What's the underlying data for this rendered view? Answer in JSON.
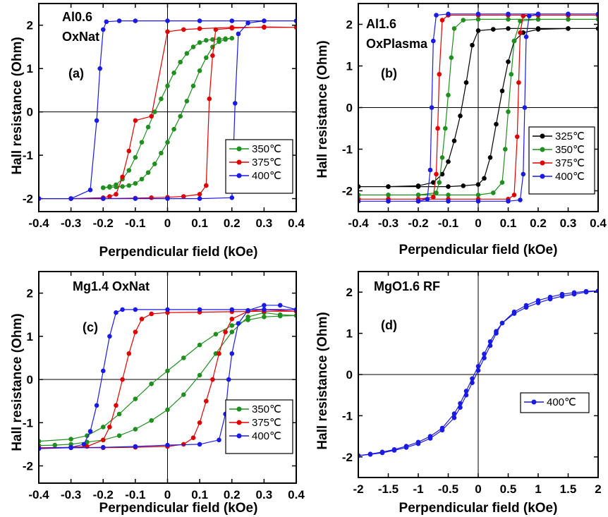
{
  "colors": {
    "green": "#1f8f1f",
    "red": "#e00000",
    "blue": "#1a1ae6",
    "black": "#000000"
  },
  "chart_data": [
    {
      "id": "a",
      "type": "line",
      "title": [
        "Al0.6",
        "OxNat"
      ],
      "label": "(a)",
      "xlabel": "Perpendicular field (kOe)",
      "ylabel": "Hall resistance (Ohm)",
      "xlim": [
        -0.4,
        0.4
      ],
      "ylim": [
        -2.3,
        2.5
      ],
      "xticks": [
        -0.4,
        -0.3,
        -0.2,
        -0.1,
        0,
        0.1,
        0.2,
        0.3,
        0.4
      ],
      "xtick_labels": [
        "-0.4",
        "-0.3",
        "-0.2",
        "-0.1",
        "0",
        "0.1",
        "0.2",
        "0.3",
        "0.4"
      ],
      "yticks": [
        -2,
        -1,
        0,
        1,
        2
      ],
      "ytick_labels": [
        "-2",
        "-1",
        "0",
        "1",
        "2"
      ],
      "legend_position": "bottom-right",
      "series": [
        {
          "name": "350℃",
          "color_key": "green",
          "x": [
            -0.2,
            -0.18,
            -0.16,
            -0.14,
            -0.12,
            -0.1,
            -0.08,
            -0.06,
            -0.04,
            -0.02,
            0,
            0.02,
            0.04,
            0.06,
            0.08,
            0.1,
            0.12,
            0.14,
            0.16,
            0.18,
            0.2,
            0.18,
            0.16,
            0.14,
            0.12,
            0.1,
            0.08,
            0.06,
            0.04,
            0.02,
            0,
            -0.02,
            -0.04,
            -0.06,
            -0.08,
            -0.1,
            -0.12,
            -0.14,
            -0.16,
            -0.18,
            -0.2
          ],
          "y": [
            -1.75,
            -1.74,
            -1.73,
            -1.72,
            -1.7,
            -1.65,
            -1.55,
            -1.4,
            -1.2,
            -0.95,
            -0.7,
            -0.4,
            -0.1,
            0.25,
            0.6,
            0.95,
            1.25,
            1.5,
            1.62,
            1.67,
            1.7,
            1.69,
            1.68,
            1.67,
            1.65,
            1.6,
            1.5,
            1.35,
            1.15,
            0.9,
            0.6,
            0.3,
            0.0,
            -0.35,
            -0.7,
            -1.05,
            -1.35,
            -1.55,
            -1.68,
            -1.72,
            -1.75
          ]
        },
        {
          "name": "375℃",
          "color_key": "red",
          "x": [
            -0.4,
            -0.3,
            -0.2,
            -0.18,
            -0.16,
            -0.14,
            -0.12,
            -0.1,
            -0.05,
            0,
            0.05,
            0.1,
            0.2,
            0.3,
            0.4,
            0.3,
            0.2,
            0.15,
            0.14,
            0.13,
            0.12,
            0.1,
            0.05,
            0,
            -0.05,
            -0.1,
            -0.2,
            -0.3,
            -0.4
          ],
          "y": [
            -2.0,
            -2.0,
            -1.98,
            -1.95,
            -1.9,
            -1.5,
            -0.9,
            -0.2,
            -0.1,
            1.85,
            1.9,
            1.92,
            1.95,
            1.95,
            1.95,
            1.96,
            1.93,
            1.9,
            1.3,
            0.3,
            -1.7,
            -1.9,
            -1.95,
            -1.97,
            -1.98,
            -1.99,
            -2.0,
            -2.0,
            -2.0
          ]
        },
        {
          "name": "400℃",
          "color_key": "blue",
          "x": [
            -0.4,
            -0.3,
            -0.24,
            -0.22,
            -0.21,
            -0.2,
            -0.19,
            -0.15,
            -0.1,
            0,
            0.1,
            0.2,
            0.3,
            0.4,
            0.3,
            0.25,
            0.22,
            0.21,
            0.2,
            0.1,
            0,
            -0.1,
            -0.2,
            -0.3,
            -0.4
          ],
          "y": [
            -2.0,
            -2.0,
            -1.8,
            -0.2,
            1.0,
            1.9,
            2.08,
            2.1,
            2.1,
            2.1,
            2.1,
            2.1,
            2.1,
            2.1,
            2.1,
            2.05,
            1.8,
            0.2,
            -1.98,
            -2.0,
            -2.0,
            -2.0,
            -2.0,
            -2.0,
            -2.0
          ]
        }
      ]
    },
    {
      "id": "b",
      "type": "line",
      "title": [
        "Al1.6",
        "OxPlasma"
      ],
      "label": "(b)",
      "xlabel": "Perpendicular field (kOe)",
      "ylabel": "Hall resistance (Ohm)",
      "xlim": [
        -0.4,
        0.4
      ],
      "ylim": [
        -2.5,
        2.5
      ],
      "xticks": [
        -0.4,
        -0.3,
        -0.2,
        -0.1,
        0,
        0.1,
        0.2,
        0.3,
        0.4
      ],
      "xtick_labels": [
        "-0.4",
        "-0.3",
        "-0.2",
        "-0.1",
        "0",
        "0.1",
        "0.2",
        "0.3",
        "0.4"
      ],
      "yticks": [
        -2,
        -1,
        0,
        1,
        2
      ],
      "ytick_labels": [
        "-2",
        "-1",
        "0",
        "1",
        "2"
      ],
      "legend_position": "bottom-right",
      "series": [
        {
          "name": "325℃",
          "color_key": "black",
          "x": [
            -0.4,
            -0.3,
            -0.2,
            -0.15,
            -0.12,
            -0.1,
            -0.08,
            -0.06,
            -0.04,
            -0.02,
            0,
            0.05,
            0.1,
            0.2,
            0.3,
            0.4,
            0.3,
            0.2,
            0.15,
            0.12,
            0.1,
            0.08,
            0.06,
            0.04,
            0.02,
            0,
            -0.05,
            -0.1,
            -0.2,
            -0.3,
            -0.4
          ],
          "y": [
            -1.9,
            -1.9,
            -1.88,
            -1.8,
            -1.6,
            -1.3,
            -0.8,
            -0.2,
            0.6,
            1.5,
            1.85,
            1.88,
            1.9,
            1.9,
            1.9,
            1.9,
            1.9,
            1.88,
            1.8,
            1.6,
            1.1,
            0.4,
            -0.4,
            -1.2,
            -1.7,
            -1.85,
            -1.88,
            -1.9,
            -1.9,
            -1.9,
            -1.9
          ]
        },
        {
          "name": "350℃",
          "color_key": "green",
          "x": [
            -0.4,
            -0.3,
            -0.2,
            -0.14,
            -0.13,
            -0.12,
            -0.11,
            -0.1,
            -0.09,
            -0.08,
            -0.05,
            0,
            0.1,
            0.2,
            0.3,
            0.4,
            0.3,
            0.2,
            0.14,
            0.12,
            0.11,
            0.1,
            0.09,
            0.08,
            0.05,
            0,
            -0.1,
            -0.2,
            -0.3,
            -0.4
          ],
          "y": [
            -2.1,
            -2.1,
            -2.1,
            -2.05,
            -1.8,
            -1.2,
            -0.5,
            0.3,
            1.2,
            1.9,
            2.1,
            2.12,
            2.12,
            2.12,
            2.12,
            2.12,
            2.12,
            2.12,
            2.08,
            1.6,
            0.8,
            -0.1,
            -1.0,
            -1.8,
            -2.05,
            -2.1,
            -2.1,
            -2.1,
            -2.1,
            -2.1
          ]
        },
        {
          "name": "375℃",
          "color_key": "red",
          "x": [
            -0.4,
            -0.3,
            -0.2,
            -0.15,
            -0.14,
            -0.135,
            -0.13,
            -0.12,
            -0.1,
            0,
            0.1,
            0.2,
            0.3,
            0.4,
            0.3,
            0.2,
            0.15,
            0.14,
            0.135,
            0.13,
            0.12,
            0.1,
            0,
            -0.1,
            -0.2,
            -0.3,
            -0.4
          ],
          "y": [
            -2.2,
            -2.2,
            -2.2,
            -2.15,
            -1.6,
            -0.5,
            0.8,
            2.1,
            2.22,
            2.22,
            2.22,
            2.22,
            2.22,
            2.22,
            2.22,
            2.22,
            2.2,
            1.8,
            0.6,
            -0.7,
            -2.1,
            -2.2,
            -2.2,
            -2.2,
            -2.2,
            -2.2,
            -2.2
          ]
        },
        {
          "name": "400℃",
          "color_key": "blue",
          "x": [
            -0.4,
            -0.3,
            -0.2,
            -0.17,
            -0.16,
            -0.155,
            -0.15,
            -0.14,
            -0.1,
            0,
            0.1,
            0.2,
            0.3,
            0.4,
            0.3,
            0.2,
            0.17,
            0.16,
            0.155,
            0.15,
            0.14,
            0.1,
            0,
            -0.1,
            -0.2,
            -0.3,
            -0.4
          ],
          "y": [
            -2.25,
            -2.25,
            -2.25,
            -2.2,
            -1.5,
            0.0,
            1.6,
            2.22,
            2.25,
            2.25,
            2.25,
            2.25,
            2.25,
            2.25,
            2.25,
            2.25,
            2.2,
            1.7,
            0.0,
            -1.6,
            -2.22,
            -2.25,
            -2.25,
            -2.25,
            -2.25,
            -2.25,
            -2.25
          ]
        }
      ]
    },
    {
      "id": "c",
      "type": "line",
      "title": [
        "Mg1.4 OxNat"
      ],
      "label": "(c)",
      "xlabel": "Perpendicular field (kOe)",
      "ylabel": "Hall resistance (Ohm)",
      "xlim": [
        -0.4,
        0.4
      ],
      "ylim": [
        -2.4,
        2.5
      ],
      "xticks": [
        -0.4,
        -0.3,
        -0.2,
        -0.1,
        0,
        0.1,
        0.2,
        0.3,
        0.4
      ],
      "xtick_labels": [
        "-0.4",
        "-0.3",
        "-0.2",
        "-0.1",
        "0",
        "0.1",
        "0.2",
        "0.3",
        "0.4"
      ],
      "yticks": [
        -2,
        -1,
        0,
        1,
        2
      ],
      "ytick_labels": [
        "-2",
        "-1",
        "0",
        "1",
        "2"
      ],
      "legend_position": "bottom-right",
      "series": [
        {
          "name": "350℃",
          "color_key": "green",
          "x": [
            -0.4,
            -0.3,
            -0.25,
            -0.2,
            -0.15,
            -0.1,
            -0.05,
            0,
            0.05,
            0.1,
            0.15,
            0.2,
            0.25,
            0.3,
            0.35,
            0.4,
            0.35,
            0.3,
            0.25,
            0.2,
            0.15,
            0.1,
            0.05,
            0,
            -0.05,
            -0.1,
            -0.15,
            -0.2,
            -0.25,
            -0.3,
            -0.35,
            -0.4
          ],
          "y": [
            -1.43,
            -1.38,
            -1.3,
            -1.1,
            -0.8,
            -0.45,
            -0.1,
            0.2,
            0.5,
            0.8,
            1.05,
            1.25,
            1.38,
            1.45,
            1.47,
            1.48,
            1.5,
            1.55,
            1.45,
            1.1,
            0.6,
            0.1,
            -0.35,
            -0.7,
            -0.95,
            -1.15,
            -1.3,
            -1.4,
            -1.45,
            -1.5,
            -1.52,
            -1.53
          ]
        },
        {
          "name": "375℃",
          "color_key": "red",
          "x": [
            -0.4,
            -0.3,
            -0.25,
            -0.2,
            -0.18,
            -0.16,
            -0.14,
            -0.12,
            -0.1,
            -0.08,
            -0.05,
            0,
            0.1,
            0.2,
            0.3,
            0.4,
            0.3,
            0.25,
            0.2,
            0.18,
            0.16,
            0.14,
            0.12,
            0.1,
            0.08,
            0.05,
            0,
            -0.1,
            -0.2,
            -0.3,
            -0.4
          ],
          "y": [
            -1.58,
            -1.57,
            -1.55,
            -1.4,
            -1.1,
            -0.6,
            0.0,
            0.6,
            1.1,
            1.4,
            1.52,
            1.55,
            1.56,
            1.57,
            1.58,
            1.58,
            1.62,
            1.58,
            1.4,
            1.1,
            0.6,
            0.0,
            -0.5,
            -1.0,
            -1.35,
            -1.5,
            -1.55,
            -1.57,
            -1.58,
            -1.58,
            -1.58
          ]
        },
        {
          "name": "400℃",
          "color_key": "blue",
          "x": [
            -0.4,
            -0.3,
            -0.26,
            -0.24,
            -0.22,
            -0.2,
            -0.18,
            -0.16,
            -0.14,
            -0.1,
            0,
            0.1,
            0.2,
            0.3,
            0.4,
            0.35,
            0.3,
            0.25,
            0.22,
            0.2,
            0.19,
            0.18,
            0.16,
            0.1,
            0,
            -0.1,
            -0.2,
            -0.3,
            -0.4
          ],
          "y": [
            -1.6,
            -1.57,
            -1.5,
            -1.2,
            -0.6,
            0.2,
            1.0,
            1.55,
            1.62,
            1.62,
            1.62,
            1.62,
            1.62,
            1.62,
            1.62,
            1.72,
            1.72,
            1.6,
            1.3,
            0.6,
            0.0,
            -0.8,
            -1.4,
            -1.5,
            -1.52,
            -1.55,
            -1.57,
            -1.58,
            -1.6
          ]
        }
      ]
    },
    {
      "id": "d",
      "type": "line",
      "title": [
        "MgO1.6 RF"
      ],
      "label": "(d)",
      "xlabel": "Perpendicular field (kOe)",
      "ylabel": "Hall resistance (Ohm)",
      "xlim": [
        -2,
        2
      ],
      "ylim": [
        -2.5,
        2.5
      ],
      "xticks": [
        -2,
        -1.5,
        -1,
        -0.5,
        0,
        0.5,
        1,
        1.5,
        2
      ],
      "xtick_labels": [
        "-2",
        "-1.5",
        "-1",
        "-0.5",
        "0",
        "0.5",
        "1",
        "1.5",
        "2"
      ],
      "yticks": [
        -2,
        -1,
        0,
        1,
        2
      ],
      "ytick_labels": [
        "-2",
        "-1",
        "0",
        "1",
        "2"
      ],
      "legend_position": "middle-right",
      "series": [
        {
          "name": "400℃",
          "color_key": "blue",
          "x": [
            -2,
            -1.8,
            -1.6,
            -1.4,
            -1.2,
            -1.0,
            -0.8,
            -0.6,
            -0.4,
            -0.3,
            -0.2,
            -0.1,
            0,
            0.1,
            0.2,
            0.3,
            0.4,
            0.6,
            0.8,
            1.0,
            1.2,
            1.4,
            1.6,
            1.8,
            2,
            1.8,
            1.6,
            1.4,
            1.2,
            1.0,
            0.8,
            0.6,
            0.4,
            0.3,
            0.2,
            0.1,
            0,
            -0.1,
            -0.2,
            -0.3,
            -0.4,
            -0.6,
            -0.8,
            -1.0,
            -1.2,
            -1.4,
            -1.6,
            -1.8,
            -2
          ],
          "y": [
            -1.97,
            -1.93,
            -1.88,
            -1.82,
            -1.74,
            -1.64,
            -1.5,
            -1.3,
            -0.95,
            -0.7,
            -0.4,
            -0.1,
            0.2,
            0.5,
            0.8,
            1.05,
            1.25,
            1.48,
            1.63,
            1.74,
            1.83,
            1.9,
            1.95,
            2.0,
            2.03,
            2.02,
            1.99,
            1.95,
            1.88,
            1.8,
            1.68,
            1.52,
            1.25,
            1.0,
            0.7,
            0.4,
            0.1,
            -0.2,
            -0.5,
            -0.8,
            -1.05,
            -1.35,
            -1.55,
            -1.68,
            -1.77,
            -1.84,
            -1.9,
            -1.94,
            -1.97
          ]
        }
      ]
    }
  ]
}
